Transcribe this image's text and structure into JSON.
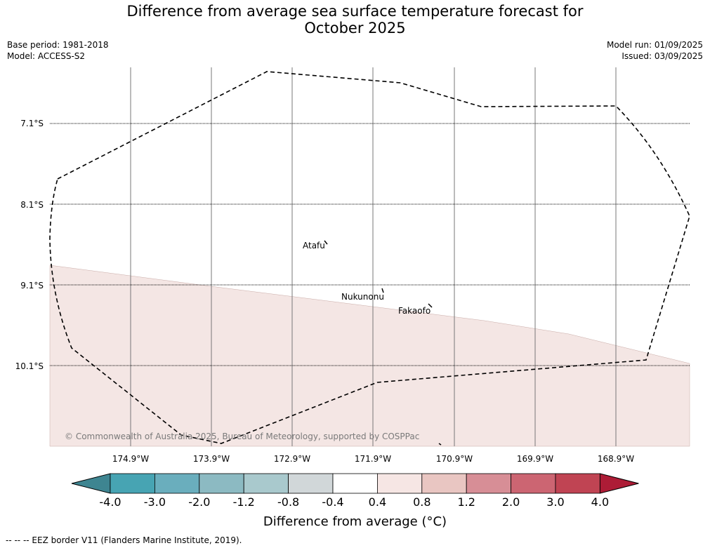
{
  "title_line1": "Difference from average sea surface temperature forecast for",
  "title_line2": "October 2025",
  "base_period": "Base period: 1981-2018",
  "model": "Model: ACCESS-S2",
  "model_run": "Model run: 01/09/2025",
  "issued": "Issued: 03/09/2025",
  "lat_labels": [
    "7.1°S",
    "8.1°S",
    "9.1°S",
    "10.1°S"
  ],
  "lon_labels": [
    "174.9°W",
    "173.9°W",
    "172.9°W",
    "171.9°W",
    "170.9°W",
    "169.9°W",
    "168.9°W"
  ],
  "places": [
    {
      "name": "Atafu"
    },
    {
      "name": "Nukunonu"
    },
    {
      "name": "Fakaofo"
    }
  ],
  "copyright": "© Commonwealth of Australia 2025, Bureau of Meteorology, supported by COSPPac",
  "colorbar": {
    "ticks": [
      "-4.0",
      "-3.0",
      "-2.0",
      "-1.2",
      "-0.8",
      "-0.4",
      "0.4",
      "0.8",
      "1.2",
      "2.0",
      "3.0",
      "4.0"
    ],
    "colors": [
      "#3e8591",
      "#47a4b3",
      "#6aaebd",
      "#8cbac2",
      "#a9c9cd",
      "#d1d7d9",
      "#ffffff",
      "#f6e6e4",
      "#e9c6c2",
      "#d78e96",
      "#cc6572",
      "#c04453",
      "#ad1c36"
    ],
    "label": "Difference from average (°C)"
  },
  "footer": "--  --  -- EEZ border V11 (Flanders Marine Institute, 2019).",
  "colors": {
    "warm_fill": "#f4e6e4",
    "grid": "#777777"
  }
}
